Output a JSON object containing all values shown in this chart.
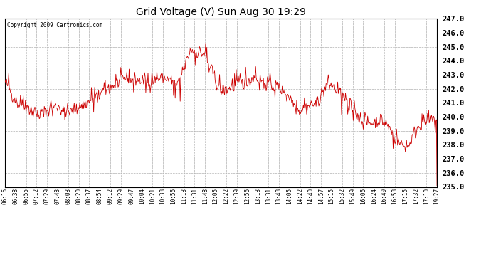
{
  "title": "Grid Voltage (V) Sun Aug 30 19:29",
  "copyright": "Copyright 2009 Cartronics.com",
  "line_color": "#cc0000",
  "bg_color": "#ffffff",
  "plot_bg_color": "#ffffff",
  "grid_color": "#b0b0b0",
  "ylim": [
    235.0,
    247.0
  ],
  "yticks": [
    235.0,
    236.0,
    237.0,
    238.0,
    239.0,
    240.0,
    241.0,
    242.0,
    243.0,
    244.0,
    245.0,
    246.0,
    247.0
  ],
  "xtick_labels": [
    "06:16",
    "06:38",
    "06:55",
    "07:12",
    "07:29",
    "07:43",
    "08:03",
    "08:20",
    "08:37",
    "08:54",
    "09:12",
    "09:29",
    "09:47",
    "10:04",
    "10:21",
    "10:38",
    "10:56",
    "11:13",
    "11:31",
    "11:48",
    "12:05",
    "12:22",
    "12:39",
    "12:56",
    "13:13",
    "13:31",
    "13:48",
    "14:05",
    "14:22",
    "14:40",
    "14:57",
    "15:15",
    "15:32",
    "15:49",
    "16:06",
    "16:24",
    "16:40",
    "16:58",
    "17:15",
    "17:32",
    "17:10",
    "19:27"
  ],
  "n_points": 780,
  "seed": 42,
  "figsize": [
    6.9,
    3.75
  ],
  "dpi": 100
}
